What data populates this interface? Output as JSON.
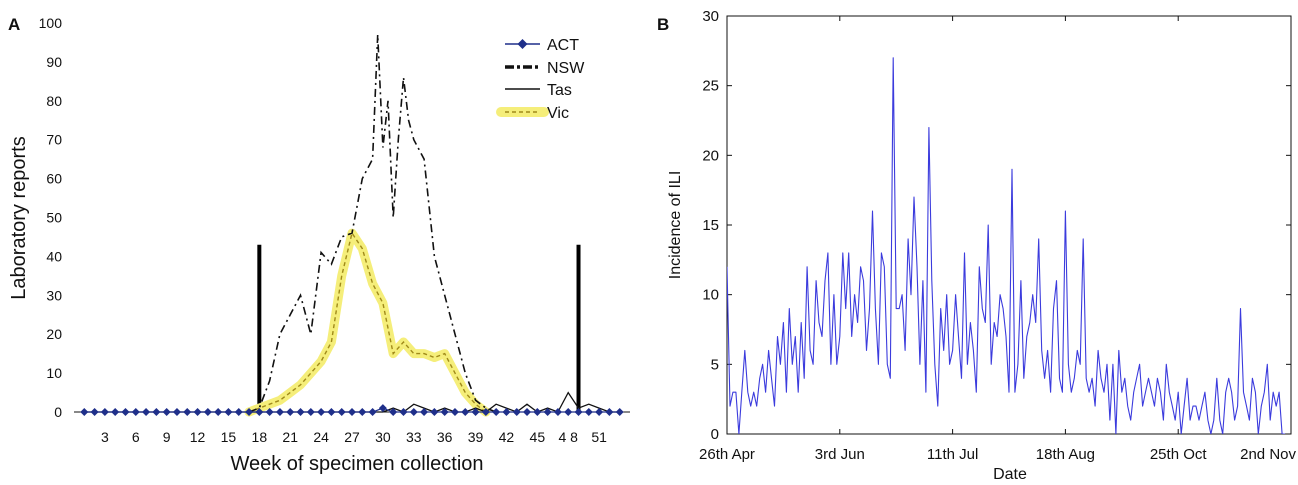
{
  "chart_data": [
    {
      "panel_label": "A",
      "type": "line",
      "xlabel": "Week of specimen collection",
      "ylabel": "Laboratory reports",
      "xlim": [
        0,
        54
      ],
      "ylim": [
        0,
        100
      ],
      "x_ticks": [
        3,
        6,
        9,
        12,
        15,
        18,
        21,
        24,
        27,
        30,
        33,
        36,
        39,
        42,
        45,
        48,
        51
      ],
      "x_tick_labels": [
        "3",
        "6",
        "9",
        "12",
        "15",
        "18",
        "21",
        "24",
        "27",
        "30",
        "33",
        "36",
        "39",
        "42",
        "45",
        "4 8",
        "51"
      ],
      "y_ticks": [
        0,
        10,
        20,
        30,
        40,
        50,
        60,
        70,
        80,
        90,
        100
      ],
      "legend_position": "top-right",
      "grid": false,
      "season_markers": [
        {
          "x": 18,
          "y_top": 43
        },
        {
          "x": 49,
          "y_top": 43
        }
      ],
      "series": [
        {
          "name": "ACT",
          "style": "diamond-line",
          "color": "#1f2f8a",
          "x": [
            1,
            2,
            3,
            4,
            5,
            6,
            7,
            8,
            9,
            10,
            11,
            12,
            13,
            14,
            15,
            16,
            17,
            18,
            19,
            20,
            21,
            22,
            23,
            24,
            25,
            26,
            27,
            28,
            29,
            30,
            31,
            32,
            33,
            34,
            35,
            36,
            37,
            38,
            39,
            40,
            41,
            42,
            43,
            44,
            45,
            46,
            47,
            48,
            49,
            50,
            51,
            52,
            53
          ],
          "y": [
            0,
            0,
            0,
            0,
            0,
            0,
            0,
            0,
            0,
            0,
            0,
            0,
            0,
            0,
            0,
            0,
            0,
            0,
            0,
            0,
            0,
            0,
            0,
            0,
            0,
            0,
            0,
            0,
            0,
            1,
            0,
            0,
            0,
            0,
            0,
            0,
            0,
            0,
            0,
            0,
            0,
            0,
            0,
            0,
            0,
            0,
            0,
            0,
            0,
            0,
            0,
            0,
            0
          ]
        },
        {
          "name": "NSW",
          "style": "dash-dot",
          "color": "#111111",
          "x": [
            17,
            18,
            19,
            20,
            21,
            22,
            23,
            24,
            25,
            26,
            27,
            28,
            29,
            29.5,
            30,
            30.5,
            31,
            31.5,
            32,
            32.5,
            33,
            34,
            35,
            36,
            37,
            38,
            39,
            40,
            41
          ],
          "y": [
            0,
            1,
            8,
            20,
            25,
            30,
            20,
            41,
            38,
            45,
            46,
            60,
            65,
            97,
            68,
            80,
            50,
            70,
            86,
            75,
            70,
            65,
            40,
            30,
            20,
            10,
            3,
            1,
            0
          ]
        },
        {
          "name": "Tas",
          "style": "solid",
          "color": "#111111",
          "x": [
            1,
            17,
            18,
            30,
            31,
            32,
            33,
            34,
            35,
            36,
            37,
            38,
            39,
            40,
            41,
            42,
            43,
            44,
            45,
            46,
            47,
            48,
            49,
            50,
            51,
            52,
            53
          ],
          "y": [
            0,
            0,
            0,
            0,
            1,
            0,
            2,
            1,
            0,
            1,
            0,
            0,
            1,
            0,
            2,
            1,
            0,
            2,
            0,
            1,
            0,
            5,
            1,
            2,
            1,
            0,
            0
          ]
        },
        {
          "name": "Vic",
          "style": "dashed-highlight",
          "color": "#a08a1a",
          "highlight": "#f5ee7a",
          "x": [
            17,
            18,
            19,
            20,
            21,
            22,
            23,
            24,
            25,
            26,
            27,
            28,
            29,
            30,
            31,
            32,
            33,
            34,
            35,
            36,
            37,
            38,
            39,
            40
          ],
          "y": [
            0,
            1,
            2,
            3,
            5,
            7,
            10,
            13,
            18,
            35,
            46,
            42,
            33,
            28,
            15,
            18,
            15,
            15,
            14,
            15,
            10,
            5,
            2,
            0
          ]
        }
      ]
    },
    {
      "panel_label": "B",
      "type": "line",
      "xlabel": "Date",
      "ylabel": "Incidence of ILI",
      "xlim": [
        0,
        190
      ],
      "ylim": [
        0,
        30
      ],
      "x_ticks": [
        0,
        38,
        76,
        114,
        152,
        190
      ],
      "x_tick_labels": [
        "26th Apr",
        "3rd Jun",
        "11th Jul",
        "18th Aug",
        "25th Oct",
        "2nd Nov"
      ],
      "y_ticks": [
        0,
        5,
        10,
        15,
        20,
        25,
        30
      ],
      "grid": false,
      "series": [
        {
          "color": "#3b3bdd",
          "x": [
            0,
            1,
            2,
            3,
            4,
            5,
            6,
            7,
            8,
            9,
            10,
            11,
            12,
            13,
            14,
            15,
            16,
            17,
            18,
            19,
            20,
            21,
            22,
            23,
            24,
            25,
            26,
            27,
            28,
            29,
            30,
            31,
            32,
            33,
            34,
            35,
            36,
            37,
            38,
            39,
            40,
            41,
            42,
            43,
            44,
            45,
            46,
            47,
            48,
            49,
            50,
            51,
            52,
            53,
            54,
            55,
            56,
            57,
            58,
            59,
            60,
            61,
            62,
            63,
            64,
            65,
            66,
            67,
            68,
            69,
            70,
            71,
            72,
            73,
            74,
            75,
            76,
            77,
            78,
            79,
            80,
            81,
            82,
            83,
            84,
            85,
            86,
            87,
            88,
            89,
            90,
            91,
            92,
            93,
            94,
            95,
            96,
            97,
            98,
            99,
            100,
            101,
            102,
            103,
            104,
            105,
            106,
            107,
            108,
            109,
            110,
            111,
            112,
            113,
            114,
            115,
            116,
            117,
            118,
            119,
            120,
            121,
            122,
            123,
            124,
            125,
            126,
            127,
            128,
            129,
            130,
            131,
            132,
            133,
            134,
            135,
            136,
            137,
            138,
            139,
            140,
            141,
            142,
            143,
            144,
            145,
            146,
            147,
            148,
            149,
            150,
            151,
            152,
            153,
            154,
            155,
            156,
            157,
            158,
            159,
            160,
            161,
            162,
            163,
            164,
            165,
            166,
            167,
            168,
            169,
            170,
            171,
            172,
            173,
            174,
            175,
            176,
            177,
            178,
            179,
            180,
            181,
            182,
            183,
            184,
            185,
            186,
            187,
            188
          ],
          "y": [
            12,
            2,
            3,
            3,
            0,
            3,
            6,
            3,
            2,
            3,
            2,
            4,
            5,
            3,
            6,
            4,
            2,
            7,
            5,
            8,
            3,
            9,
            5,
            7,
            3,
            8,
            4,
            12,
            6,
            5,
            11,
            8,
            7,
            11,
            13,
            5,
            10,
            5,
            7,
            13,
            9,
            13,
            7,
            10,
            8,
            12,
            11,
            6,
            9,
            16,
            9,
            5,
            13,
            12,
            5,
            4,
            27,
            9,
            9,
            10,
            6,
            14,
            10,
            17,
            12,
            5,
            11,
            3,
            22,
            11,
            5,
            2,
            9,
            6,
            10,
            5,
            6,
            10,
            7,
            4,
            13,
            5,
            8,
            6,
            3,
            12,
            9,
            8,
            15,
            5,
            8,
            7,
            10,
            9,
            7,
            3,
            19,
            3,
            5,
            11,
            4,
            7,
            8,
            10,
            8,
            14,
            6,
            4,
            6,
            3,
            9,
            11,
            4,
            3,
            16,
            5,
            3,
            4,
            6,
            5,
            14,
            4,
            3,
            4,
            2,
            6,
            4,
            3,
            5,
            1,
            5,
            0,
            6,
            3,
            4,
            2,
            1,
            3,
            4,
            5,
            2,
            3,
            4,
            3,
            2,
            4,
            3,
            1,
            5,
            3,
            2,
            1,
            3,
            0,
            2,
            4,
            1,
            2,
            2,
            1,
            2,
            3,
            1,
            0,
            1,
            4,
            1,
            0,
            3,
            4,
            3,
            1,
            2,
            9,
            3,
            2,
            1,
            4,
            3,
            0,
            2,
            3,
            5,
            1,
            3,
            2,
            3,
            0,
            0
          ]
        }
      ]
    }
  ]
}
